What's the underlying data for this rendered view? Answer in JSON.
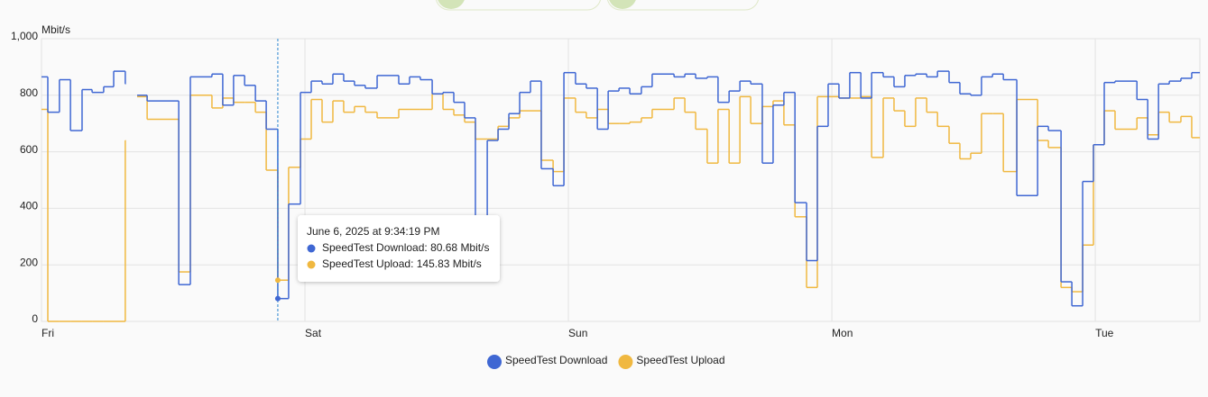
{
  "chart_data": {
    "type": "step-line",
    "y_label": "Mbit/s",
    "x": [
      0,
      0.024,
      0.068,
      0.11,
      0.154,
      0.192,
      0.236,
      0.274,
      0.318,
      0.34,
      0.363,
      0.401,
      0.521,
      0.565,
      0.647,
      0.688,
      0.729,
      0.771,
      0.812,
      0.853,
      0.897,
      0.938,
      0.983,
      1.024,
      1.065,
      1.106,
      1.147,
      1.188,
      1.229,
      1.274,
      1.356,
      1.397,
      1.438,
      1.483,
      1.524,
      1.565,
      1.606,
      1.647,
      1.692,
      1.733,
      1.774,
      1.815,
      1.856,
      1.897,
      1.942,
      1.983,
      2.027,
      2.068,
      2.11,
      2.151,
      2.192,
      2.233,
      2.277,
      2.318,
      2.401,
      2.442,
      2.483,
      2.527,
      2.568,
      2.61,
      2.651,
      2.692,
      2.736,
      2.777,
      2.818,
      2.86,
      2.904,
      2.945,
      2.986,
      3.027,
      3.068,
      3.11,
      3.151,
      3.195,
      3.236,
      3.277,
      3.318,
      3.36,
      3.401,
      3.445,
      3.486,
      3.527,
      3.568,
      3.61,
      3.651,
      3.702,
      3.781,
      3.822,
      3.87,
      3.911,
      3.952,
      3.993,
      4.034,
      4.075,
      4.158,
      4.199,
      4.24,
      4.281,
      4.325,
      4.366
    ],
    "series": [
      {
        "name": "SpeedTest Download",
        "color": "#3f67d3",
        "values": [
          865,
          740,
          855,
          675,
          820,
          810,
          830,
          885,
          840,
          null,
          800,
          780,
          130,
          865,
          875,
          765,
          870,
          835,
          780,
          680,
          80.68,
          415,
          810,
          850,
          840,
          875,
          850,
          835,
          825,
          870,
          840,
          865,
          855,
          805,
          810,
          775,
          720,
          370,
          640,
          680,
          735,
          810,
          850,
          540,
          480,
          880,
          840,
          825,
          680,
          815,
          825,
          805,
          830,
          875,
          865,
          875,
          860,
          865,
          775,
          815,
          850,
          840,
          560,
          765,
          810,
          420,
          215,
          690,
          840,
          790,
          880,
          790,
          880,
          865,
          830,
          870,
          875,
          865,
          885,
          845,
          805,
          800,
          865,
          875,
          855,
          445,
          690,
          675,
          140,
          55,
          495,
          625,
          845,
          850,
          785,
          645,
          840,
          850,
          860,
          880
        ]
      },
      {
        "name": "SpeedTest Upload",
        "color": "#f0b840",
        "values": [
          750,
          0,
          0,
          0,
          0,
          0,
          0,
          0,
          640,
          null,
          795,
          715,
          175,
          800,
          755,
          790,
          775,
          775,
          740,
          535,
          145.83,
          545,
          645,
          785,
          705,
          780,
          740,
          760,
          740,
          720,
          750,
          750,
          750,
          805,
          750,
          730,
          705,
          645,
          645,
          690,
          720,
          745,
          745,
          570,
          530,
          790,
          740,
          720,
          750,
          700,
          700,
          705,
          720,
          750,
          790,
          740,
          680,
          560,
          750,
          560,
          795,
          700,
          760,
          780,
          695,
          370,
          120,
          795,
          795,
          790,
          790,
          795,
          580,
          790,
          745,
          690,
          790,
          740,
          690,
          630,
          575,
          595,
          735,
          735,
          530,
          785,
          640,
          615,
          120,
          105,
          270,
          625,
          745,
          680,
          720,
          660,
          740,
          705,
          725,
          650
        ]
      }
    ],
    "xlim": [
      0,
      4.397
    ],
    "xticks": [
      {
        "value": 0,
        "label": "Fri"
      },
      {
        "value": 1,
        "label": "Sat"
      },
      {
        "value": 2,
        "label": "Sun"
      },
      {
        "value": 3,
        "label": "Mon"
      },
      {
        "value": 4,
        "label": "Tue"
      }
    ],
    "ylim": [
      0,
      1000
    ],
    "yticks": [
      0,
      200,
      400,
      600,
      800,
      {
        "value": 1000,
        "label": "1,000"
      }
    ],
    "grid": true,
    "legend": "bottom",
    "tooltip": {
      "index": 20,
      "title": "June 6, 2025 at 9:34:19 PM",
      "lines": [
        "SpeedTest Download: 80.68 Mbit/s",
        "SpeedTest Upload: 145.83 Mbit/s"
      ]
    }
  }
}
